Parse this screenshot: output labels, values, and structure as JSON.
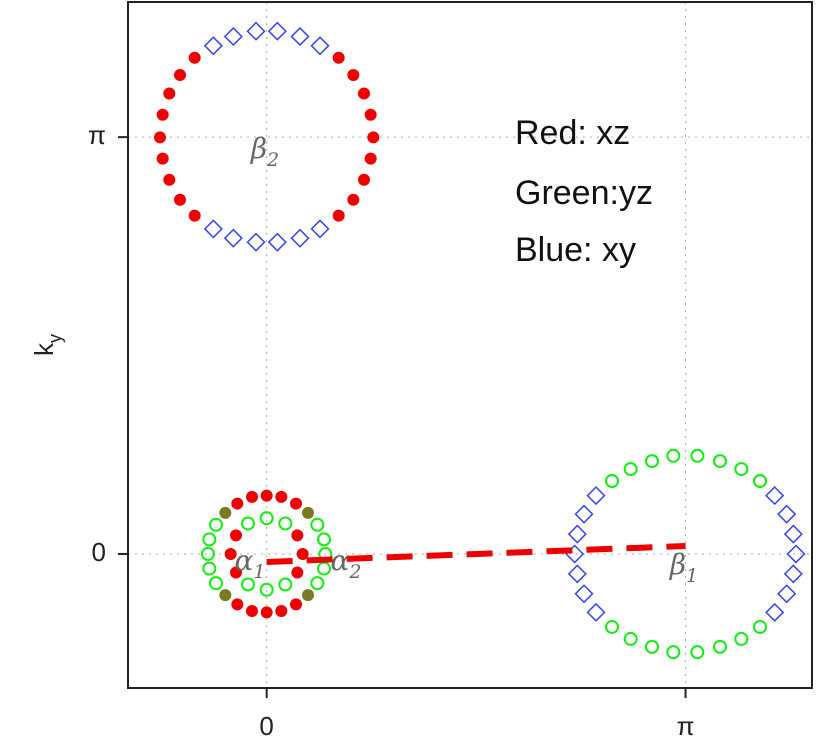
{
  "chart_data": {
    "type": "scatter",
    "ylabel": [
      "k",
      "y"
    ],
    "notes": [
      "Red: xz",
      "Green:yz",
      "Blue: xy"
    ],
    "surface_labels": [
      [
        "β",
        "2"
      ],
      [
        "α",
        "1"
      ],
      [
        "α",
        "2"
      ],
      [
        "β",
        "1"
      ]
    ],
    "xlim": [
      -1.04,
      4.09
    ],
    "ylim": [
      -1.01,
      4.16
    ],
    "xticks": [
      0,
      {
        "value": 3.14159,
        "label": "π"
      }
    ],
    "yticks": [
      0,
      {
        "value": 3.14159,
        "label": "π"
      }
    ],
    "grid": true,
    "series": [
      {
        "marker": "dot",
        "color": "#ee0000",
        "x": [
          0.8,
          0.78,
          0.78,
          0.73,
          0.73,
          0.65,
          0.65,
          0.54,
          0.54,
          -0.8,
          -0.78,
          -0.78,
          -0.73,
          -0.73,
          -0.65,
          -0.65,
          -0.54,
          -0.54
        ],
        "y": [
          3.14,
          3.31,
          2.98,
          3.47,
          2.82,
          3.61,
          2.67,
          3.74,
          2.55,
          3.14,
          3.31,
          2.98,
          3.47,
          2.82,
          3.61,
          2.67,
          3.74,
          2.55
        ]
      },
      {
        "marker": "diamond",
        "color": "#3344ee",
        "x": [
          0.4,
          0.25,
          0.08,
          -0.08,
          -0.25,
          -0.4,
          0.4,
          0.25,
          0.08,
          -0.08,
          -0.25,
          -0.4
        ],
        "y": [
          3.83,
          3.9,
          3.94,
          3.94,
          3.9,
          3.83,
          2.45,
          2.38,
          2.35,
          2.35,
          2.38,
          2.45
        ]
      },
      {
        "marker": "ring",
        "color": "#11ee11",
        "x": [
          3.7,
          3.56,
          3.4,
          3.23,
          3.05,
          2.89,
          2.73,
          2.59,
          3.7,
          3.56,
          3.4,
          3.23,
          3.05,
          2.89,
          2.73,
          2.59
        ],
        "y": [
          0.55,
          0.64,
          0.7,
          0.74,
          0.74,
          0.7,
          0.64,
          0.55,
          -0.55,
          -0.64,
          -0.7,
          -0.74,
          -0.74,
          -0.7,
          -0.64,
          -0.55
        ]
      },
      {
        "marker": "diamond",
        "color": "#3344ee",
        "x": [
          3.81,
          3.9,
          3.95,
          3.97,
          3.95,
          3.9,
          3.81,
          2.47,
          2.38,
          2.33,
          2.31,
          2.33,
          2.38,
          2.47
        ],
        "y": [
          0.44,
          0.3,
          0.15,
          0,
          -0.15,
          -0.3,
          -0.44,
          0.44,
          0.3,
          0.15,
          0,
          -0.15,
          -0.3,
          -0.44
        ]
      },
      {
        "marker": "dot",
        "color": "#ee0000",
        "x": [
          0.27,
          0.23,
          0.23,
          -0.27,
          -0.23,
          -0.23
        ],
        "y": [
          0,
          0.14,
          -0.14,
          0,
          0.14,
          -0.14
        ]
      },
      {
        "marker": "ring",
        "color": "#11ee11",
        "x": [
          0.14,
          0,
          -0.14,
          -0.14,
          0,
          0.14
        ],
        "y": [
          0.23,
          0.27,
          0.23,
          -0.23,
          -0.27,
          -0.23
        ]
      },
      {
        "marker": "ring",
        "color": "#11ee11",
        "x": [
          0.44,
          0.43,
          0.43,
          0.38,
          0.38,
          -0.44,
          -0.43,
          -0.43,
          -0.38,
          -0.38
        ],
        "y": [
          0,
          0.11,
          -0.11,
          0.22,
          -0.22,
          0,
          0.11,
          -0.11,
          0.22,
          -0.22
        ]
      },
      {
        "marker": "dot",
        "color": "#ee0000",
        "x": [
          0.22,
          0.11,
          0,
          -0.11,
          -0.22,
          0.22,
          0.11,
          0,
          -0.11,
          -0.22
        ],
        "y": [
          0.38,
          0.43,
          0.44,
          0.43,
          0.38,
          -0.38,
          -0.43,
          -0.44,
          -0.43,
          -0.38
        ]
      },
      {
        "marker": "dot",
        "color": "#7a7a22",
        "x": [
          0.31,
          -0.31,
          -0.31,
          0.31
        ],
        "y": [
          0.31,
          0.31,
          -0.31,
          -0.31
        ]
      },
      {
        "marker": "dash-line",
        "color": "#ee0000",
        "x": [
          0,
          3.14159
        ],
        "y": [
          -0.06,
          0.06
        ]
      }
    ]
  }
}
